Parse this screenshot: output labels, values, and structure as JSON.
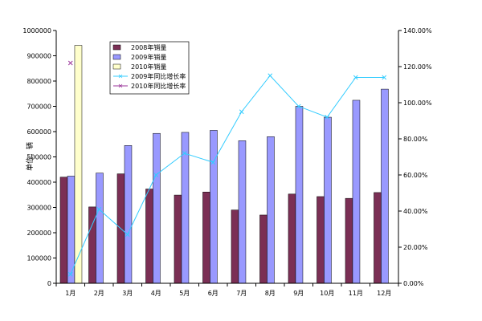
{
  "chart_data": {
    "type": "bar",
    "ylabel": "单位：辆",
    "categories": [
      "1月",
      "2月",
      "3月",
      "4月",
      "5月",
      "6月",
      "7月",
      "8月",
      "9月",
      "10月",
      "11月",
      "12月"
    ],
    "y_left": {
      "min": 0,
      "max": 1000000,
      "step": 100000,
      "tick_labels": [
        "0",
        "100000",
        "200000",
        "300000",
        "400000",
        "500000",
        "600000",
        "700000",
        "800000",
        "900000",
        "1000000"
      ]
    },
    "y_right": {
      "min": 0,
      "max": 1.4,
      "step": 0.2,
      "tick_labels": [
        "0.00%",
        "20.00%",
        "40.00%",
        "60.00%",
        "80.00%",
        "100.00%",
        "120.00%",
        "140.00%"
      ]
    },
    "series": [
      {
        "name": "2008年销量",
        "kind": "bar",
        "color": "#7B2F55",
        "values": [
          420000,
          302000,
          433000,
          373000,
          349000,
          361000,
          290000,
          270000,
          353000,
          343000,
          336000,
          359000
        ]
      },
      {
        "name": "2009年销量",
        "kind": "bar",
        "color": "#9999FF",
        "values": [
          424000,
          436000,
          545000,
          593000,
          597000,
          605000,
          564000,
          580000,
          700000,
          657000,
          724000,
          768000
        ]
      },
      {
        "name": "2010年销量",
        "kind": "bar",
        "color": "#FFFFCC",
        "values": [
          941000,
          null,
          null,
          null,
          null,
          null,
          null,
          null,
          null,
          null,
          null,
          null
        ]
      },
      {
        "name": "2009年同比增长率",
        "kind": "line",
        "axis": "right",
        "color": "#33CCFF",
        "values": [
          0.05,
          0.41,
          0.27,
          0.6,
          0.72,
          0.67,
          0.95,
          1.15,
          0.98,
          0.92,
          1.14,
          1.14
        ]
      },
      {
        "name": "2010年同比增长率",
        "kind": "line",
        "axis": "right",
        "color": "#993399",
        "values": [
          1.22,
          null,
          null,
          null,
          null,
          null,
          null,
          null,
          null,
          null,
          null,
          null
        ]
      }
    ],
    "legend_position": "top-left-inside",
    "grid": false
  }
}
